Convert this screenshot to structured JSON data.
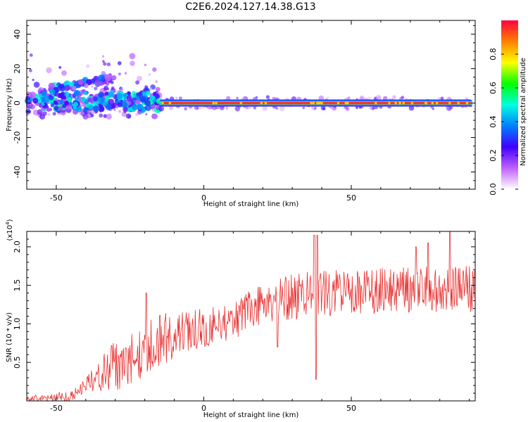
{
  "title": "C2E6.2024.127.14.38.G13",
  "chart_data": [
    {
      "type": "heatmap",
      "xlabel": "Height of straight line (km)",
      "ylabel": "Frequency (Hz)",
      "xlim": [
        -60,
        92
      ],
      "ylim": [
        -50,
        48
      ],
      "xticks": [
        -50,
        0,
        50
      ],
      "yticks": [
        -40,
        -20,
        0,
        20,
        40
      ],
      "colorbar": {
        "label": "Normalized spectral amplitude",
        "range": [
          0,
          1
        ],
        "ticks": [
          "0.0",
          "0.2",
          "0.4",
          "0.6",
          "0.8"
        ],
        "colors": [
          "#ffffff",
          "#c060ff",
          "#4000ff",
          "#0080ff",
          "#00ffe0",
          "#00ff00",
          "#ffff00",
          "#ff8000",
          "#ff0040"
        ]
      },
      "ridge": {
        "segments": [
          {
            "x": [
              -15,
              91
            ],
            "y": 0,
            "amplitude": 1.0
          },
          {
            "x": [
              -60,
              -15
            ],
            "y": 1,
            "amplitude": 0.35
          }
        ],
        "branch": {
          "x": [
            -52,
            -30
          ],
          "y": [
            8,
            15
          ],
          "amplitude": 0.3
        }
      },
      "scatter_x_range": [
        -60,
        -15
      ],
      "scatter_y_range": [
        -8,
        28
      ]
    },
    {
      "type": "line",
      "xlabel": "Height of straight line (km)",
      "ylabel": "SNR (10 * v/v)",
      "ymultiplier": "(x10^4)",
      "multiplier_base": "(x10",
      "multiplier_exp": "4",
      "multiplier_close": ")",
      "xlim": [
        -60,
        92
      ],
      "ylim": [
        0,
        22000
      ],
      "xticks": [
        -50,
        0,
        50
      ],
      "yticks": [
        5000,
        10000,
        15000,
        20000
      ],
      "ytick_labels": [
        "0.5",
        "1.0",
        "1.5",
        "2.0"
      ],
      "color": "#e83030",
      "trend": [
        {
          "x": -60,
          "y": 300
        },
        {
          "x": -45,
          "y": 600
        },
        {
          "x": -35,
          "y": 3500
        },
        {
          "x": -25,
          "y": 5500
        },
        {
          "x": -15,
          "y": 8000
        },
        {
          "x": 0,
          "y": 9500
        },
        {
          "x": 10,
          "y": 10500
        },
        {
          "x": 20,
          "y": 12500
        },
        {
          "x": 30,
          "y": 13500
        },
        {
          "x": 40,
          "y": 14000
        },
        {
          "x": 50,
          "y": 14000
        },
        {
          "x": 60,
          "y": 14500
        },
        {
          "x": 70,
          "y": 14500
        },
        {
          "x": 80,
          "y": 14500
        },
        {
          "x": 92,
          "y": 14500
        }
      ],
      "noise_amplitude": [
        {
          "x": -60,
          "y": 300
        },
        {
          "x": -40,
          "y": 900
        },
        {
          "x": -30,
          "y": 3500
        },
        {
          "x": -15,
          "y": 3500
        },
        {
          "x": 0,
          "y": 2500
        },
        {
          "x": 30,
          "y": 3000
        },
        {
          "x": 60,
          "y": 3000
        },
        {
          "x": 92,
          "y": 3000
        }
      ],
      "peaks": [
        {
          "x": -19.5,
          "y": 14000
        },
        {
          "x": 37.5,
          "y": 21500
        },
        {
          "x": 38.5,
          "y": 21500
        },
        {
          "x": 72,
          "y": 20000
        },
        {
          "x": 76,
          "y": 20500
        },
        {
          "x": 83.5,
          "y": 22000
        }
      ],
      "dips": [
        {
          "x": 38,
          "y": 2800
        },
        {
          "x": 25,
          "y": 7000
        }
      ]
    }
  ]
}
